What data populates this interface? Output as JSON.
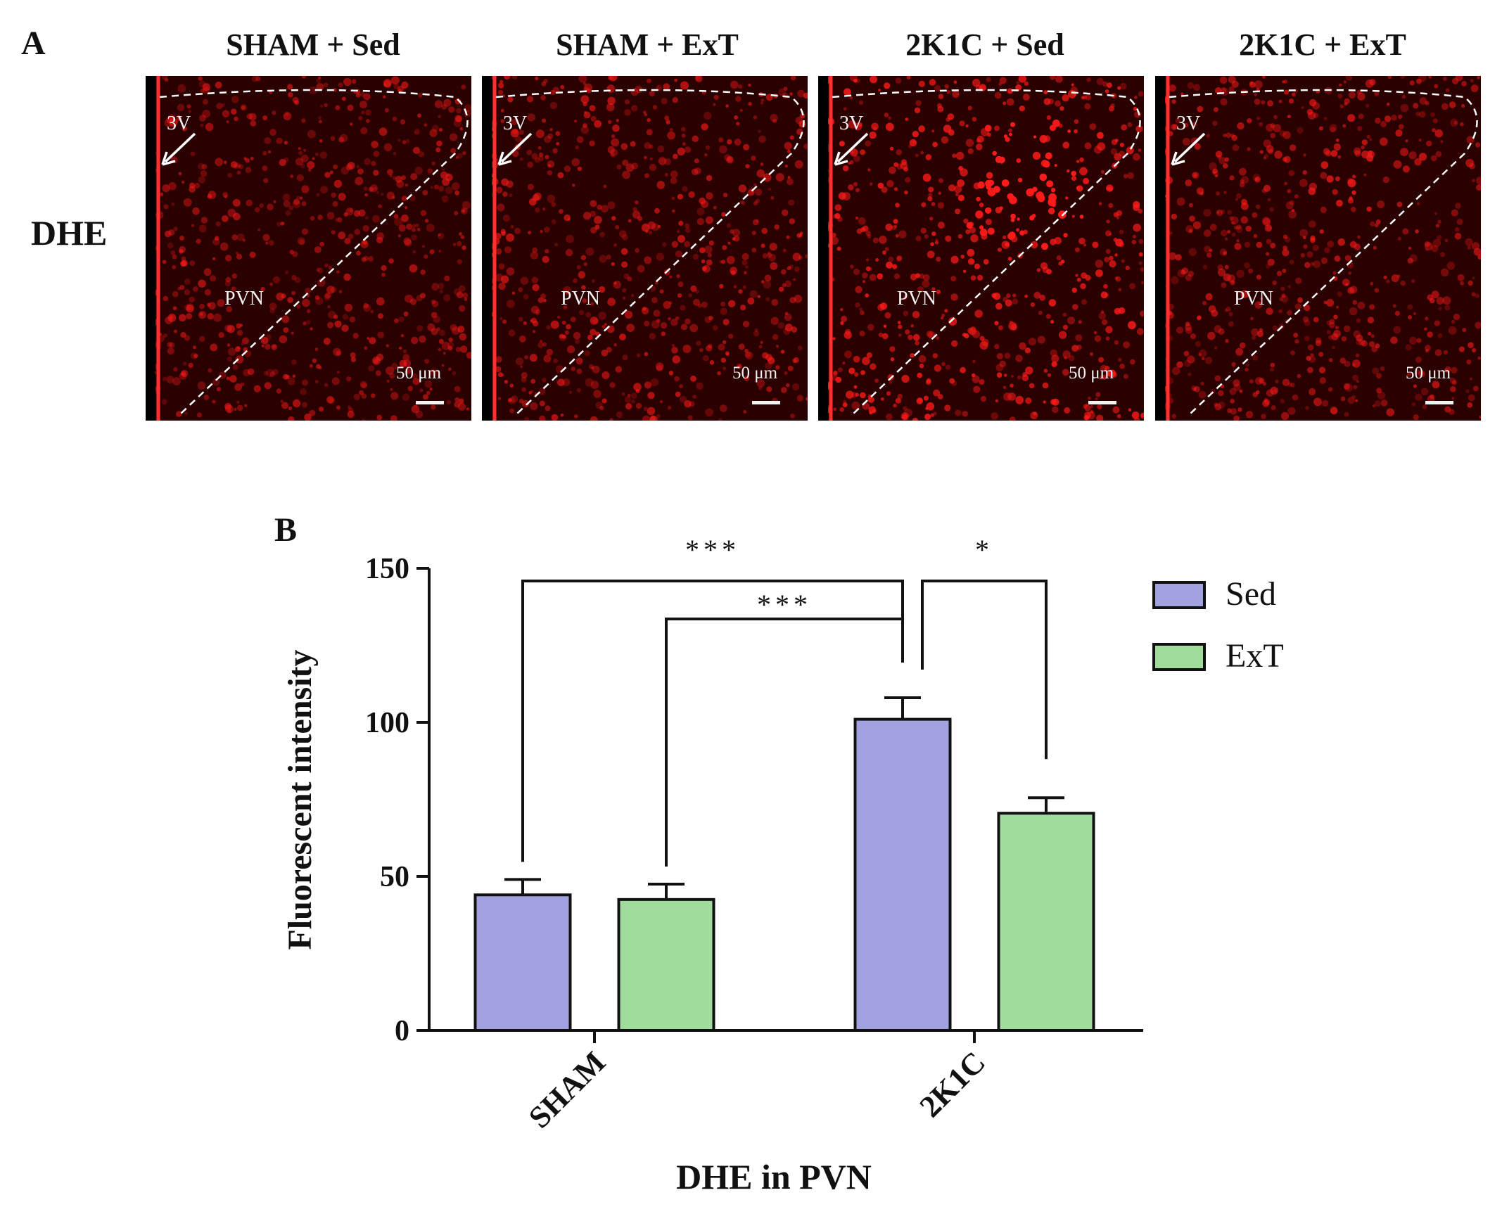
{
  "panel_a": {
    "letter": "A",
    "row_label": "DHE",
    "panels": [
      {
        "title": "SHAM + Sed",
        "ventricle_label": "3V",
        "nucleus_label": "PVN",
        "scale_label": "50 μm",
        "intensity": 0.85,
        "hotspot": 0.0
      },
      {
        "title": "SHAM + ExT",
        "ventricle_label": "3V",
        "nucleus_label": "PVN",
        "scale_label": "50 μm",
        "intensity": 0.95,
        "hotspot": 0.0
      },
      {
        "title": "2K1C + Sed",
        "ventricle_label": "3V",
        "nucleus_label": "PVN",
        "scale_label": "50 μm",
        "intensity": 1.2,
        "hotspot": 1.0
      },
      {
        "title": "2K1C + ExT",
        "ventricle_label": "3V",
        "nucleus_label": "PVN",
        "scale_label": "50 μm",
        "intensity": 0.9,
        "hotspot": 0.25
      }
    ]
  },
  "panel_b": {
    "letter": "B"
  },
  "colors": {
    "sed": "#a2a2e0",
    "ext": "#a0dd9c",
    "micrograph_red": "#ff1a1a"
  },
  "chart_data": {
    "type": "bar",
    "xlabel": "DHE in PVN",
    "ylabel": "Fluorescent intensity",
    "ylim": [
      0,
      150
    ],
    "yticks": [
      0,
      50,
      100,
      150
    ],
    "categories": [
      "SHAM",
      "2K1C"
    ],
    "series": [
      {
        "name": "Sed",
        "values": [
          44,
          101
        ],
        "errors": [
          5,
          7
        ],
        "color": "#a2a2e0"
      },
      {
        "name": "ExT",
        "values": [
          42.5,
          70.5
        ],
        "errors": [
          5,
          5
        ],
        "color": "#a0dd9c"
      }
    ],
    "legend": {
      "placement": "top-right",
      "entries": [
        "Sed",
        "ExT"
      ]
    },
    "significance": [
      {
        "from": "SHAM/Sed",
        "to": "2K1C/Sed",
        "label": "***"
      },
      {
        "from": "SHAM/ExT",
        "to": "2K1C/Sed",
        "label": "***"
      },
      {
        "from": "2K1C/Sed",
        "to": "2K1C/ExT",
        "label": "*"
      }
    ],
    "grid": false
  }
}
